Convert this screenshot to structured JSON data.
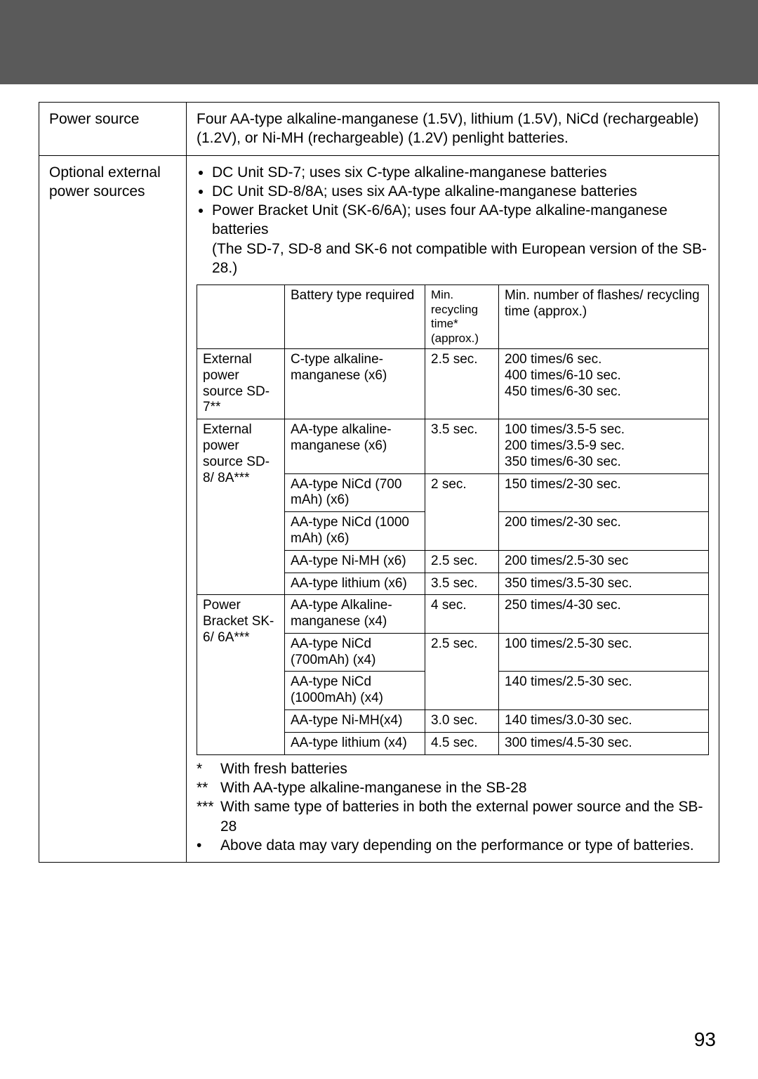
{
  "page_number": "93",
  "row1": {
    "label": "Power source",
    "text": "Four AA-type alkaline-manganese (1.5V), lithium (1.5V), NiCd (rechargeable) (1.2V), or Ni-MH (rechargeable) (1.2V) penlight batteries."
  },
  "row2": {
    "label": "Optional external power sources",
    "bullets": [
      "DC Unit SD-7; uses six C-type alkaline-manganese batteries",
      "DC Unit SD-8/8A; uses six AA-type alkaline-manganese batteries",
      "Power Bracket Unit (SK-6/6A); uses four AA-type alkaline-manganese batteries"
    ],
    "note": "(The SD-7, SD-8 and SK-6 not compatible with European version of the SB-28.)"
  },
  "inner_headers": {
    "c1": "",
    "c2": "Battery type required",
    "c3": "Min. recycling time* (approx.)",
    "c4": "Min. number of flashes/ recycling time (approx.)"
  },
  "groups": [
    {
      "label": "External power source SD-7**",
      "rows": [
        {
          "bat": "C-type alkaline-manganese (x6)",
          "rec": "2.5 sec.",
          "fl": "200 times/6 sec.\n400 times/6-10 sec.\n450 times/6-30 sec."
        }
      ]
    },
    {
      "label": "External power source SD-8/ 8A***",
      "rows": [
        {
          "bat": "AA-type alkaline-manganese (x6)",
          "rec": "3.5 sec.",
          "fl": "100 times/3.5-5 sec.\n200 times/3.5-9 sec.\n350 times/6-30 sec."
        },
        {
          "bat": "AA-type NiCd (700 mAh) (x6)",
          "rec": "2 sec.",
          "rec_span": 2,
          "fl": "150 times/2-30 sec."
        },
        {
          "bat": "AA-type NiCd (1000 mAh) (x6)",
          "fl": "200 times/2-30 sec."
        },
        {
          "bat": "AA-type Ni-MH (x6)",
          "rec": "2.5 sec.",
          "fl": "200 times/2.5-30 sec"
        },
        {
          "bat": "AA-type lithium (x6)",
          "rec": "3.5 sec.",
          "fl": "350 times/3.5-30 sec."
        }
      ]
    },
    {
      "label": "Power Bracket SK-6/ 6A***",
      "rows": [
        {
          "bat": "AA-type Alkaline-manganese (x4)",
          "rec": "4 sec.",
          "fl": "250 times/4-30 sec."
        },
        {
          "bat": "AA-type NiCd (700mAh) (x4)",
          "rec": "2.5 sec.",
          "rec_span": 2,
          "fl": "100 times/2.5-30 sec."
        },
        {
          "bat": "AA-type NiCd (1000mAh) (x4)",
          "fl": "140 times/2.5-30 sec."
        },
        {
          "bat": "AA-type Ni-MH(x4)",
          "rec": "3.0 sec.",
          "fl": "140 times/3.0-30 sec."
        },
        {
          "bat": "AA-type lithium (x4)",
          "rec": "4.5 sec.",
          "fl": "300 times/4.5-30 sec."
        }
      ]
    }
  ],
  "footnotes": [
    {
      "mark": "*",
      "text": "With fresh batteries"
    },
    {
      "mark": "**",
      "text": "With AA-type alkaline-manganese in the SB-28"
    },
    {
      "mark": "***",
      "text": "With same type of batteries in both the external power source and the SB-28"
    },
    {
      "mark": "•",
      "text": "Above data may vary depending on the performance or type of batteries."
    }
  ]
}
